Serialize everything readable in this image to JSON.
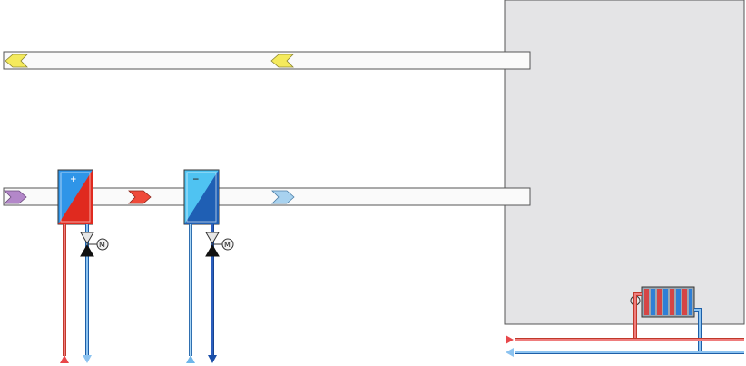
{
  "heating_coil": {
    "sign": "+",
    "valve_label": "M"
  },
  "cooling_coil": {
    "sign": "−",
    "valve_label": "M"
  },
  "colors": {
    "duct_fill": "#fafafa",
    "duct_stroke": "#555555",
    "room_fill": "#e4e4e6",
    "supply_water": "#e8474a",
    "return_water": "#1e88e5",
    "chilled_supply": "#64b5f6",
    "chilled_return": "#1a4ea8",
    "exhaust_arrow": "#f4ea5c",
    "outdoor_arrow": "#b387c9",
    "heated_arrow": "#ef4a3a",
    "cooled_arrow": "#a8d2ef"
  }
}
